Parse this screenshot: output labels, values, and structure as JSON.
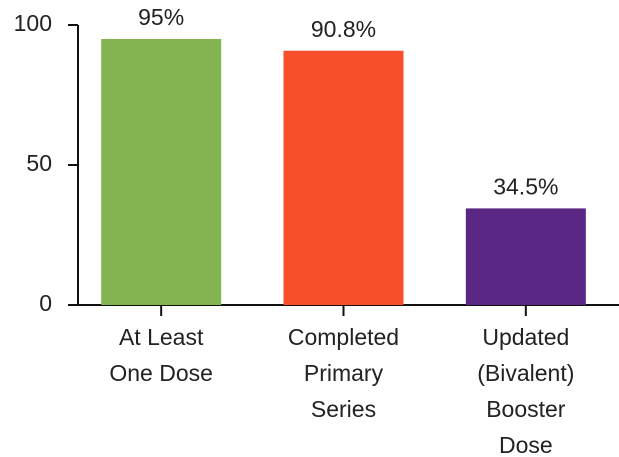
{
  "chart_data": {
    "type": "bar",
    "categories": [
      [
        "At Least",
        "One Dose"
      ],
      [
        "Completed",
        "Primary",
        "Series"
      ],
      [
        "Updated",
        "(Bivalent)",
        "Booster",
        "Dose"
      ]
    ],
    "values": [
      95,
      90.8,
      34.5
    ],
    "value_labels": [
      "95%",
      "90.8%",
      "34.5%"
    ],
    "colors": [
      "#84b452",
      "#f84f2b",
      "#5b2784"
    ],
    "ylim": [
      0,
      100
    ],
    "yticks": [
      0,
      50,
      100
    ],
    "grid": false
  }
}
